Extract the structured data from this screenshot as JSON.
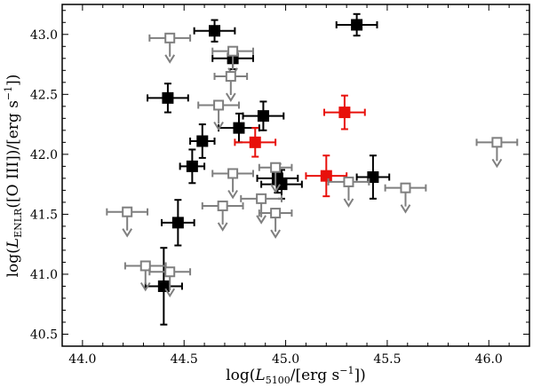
{
  "chart_data": {
    "type": "scatter",
    "xlabel": "log(L5100/[erg s−1])",
    "ylabel": "log(LENLR([O III])/[erg s−1])",
    "xlim": [
      43.9,
      46.2
    ],
    "ylim": [
      40.4,
      43.25
    ],
    "x_ticks": [
      44.0,
      44.5,
      45.0,
      45.5,
      46.0
    ],
    "x_tick_labels": [
      "44.0",
      "44.5",
      "45.0",
      "45.5",
      "46.0"
    ],
    "y_ticks": [
      40.5,
      41.0,
      41.5,
      42.0,
      42.5,
      43.0
    ],
    "y_tick_labels": [
      "40.5",
      "41.0",
      "41.5",
      "42.0",
      "42.5",
      "43.0"
    ],
    "grid": false,
    "legend": "none",
    "colors": {
      "detected": "#000000",
      "upper_limit": "#7f7f7f",
      "highlight": "#e8100b"
    },
    "series": [
      {
        "marker": "filled-square",
        "color": "#000000",
        "points": [
          {
            "x": 44.65,
            "y": 43.03,
            "xerr": 0.1,
            "yerr": 0.09
          },
          {
            "x": 45.35,
            "y": 43.08,
            "xerr": 0.1,
            "yerr": 0.09
          },
          {
            "x": 44.74,
            "y": 42.8,
            "xerr": 0.1,
            "yerr": 0.09
          },
          {
            "x": 44.42,
            "y": 42.47,
            "xerr": 0.1,
            "yerr": 0.12
          },
          {
            "x": 44.89,
            "y": 42.32,
            "xerr": 0.1,
            "yerr": 0.12
          },
          {
            "x": 44.77,
            "y": 42.22,
            "xerr": 0.1,
            "yerr": 0.12
          },
          {
            "x": 44.59,
            "y": 42.11,
            "xerr": 0.06,
            "yerr": 0.14
          },
          {
            "x": 44.54,
            "y": 41.9,
            "xerr": 0.06,
            "yerr": 0.14
          },
          {
            "x": 44.96,
            "y": 41.8,
            "xerr": 0.1,
            "yerr": 0.12
          },
          {
            "x": 44.98,
            "y": 41.75,
            "xerr": 0.1,
            "yerr": 0.12
          },
          {
            "x": 45.43,
            "y": 41.81,
            "xerr": 0.08,
            "yerr": 0.18
          },
          {
            "x": 44.47,
            "y": 41.43,
            "xerr": 0.08,
            "yerr": 0.19
          },
          {
            "x": 44.4,
            "y": 40.9,
            "xerr": 0.09,
            "yerr": 0.32
          }
        ]
      },
      {
        "marker": "filled-square",
        "color": "#e8100b",
        "points": [
          {
            "x": 45.29,
            "y": 42.35,
            "xerr": 0.1,
            "yerr": 0.14
          },
          {
            "x": 44.85,
            "y": 42.1,
            "xerr": 0.1,
            "yerr": 0.12
          },
          {
            "x": 45.2,
            "y": 41.82,
            "xerr": 0.1,
            "yerr": 0.17
          }
        ]
      },
      {
        "marker": "open-square-upper-limit",
        "color": "#7f7f7f",
        "points": [
          {
            "x": 44.43,
            "y": 42.97,
            "xerr": 0.1
          },
          {
            "x": 44.74,
            "y": 42.86,
            "xerr": 0.1
          },
          {
            "x": 44.73,
            "y": 42.65,
            "xerr": 0.08
          },
          {
            "x": 44.67,
            "y": 42.41,
            "xerr": 0.1
          },
          {
            "x": 44.74,
            "y": 41.84,
            "xerr": 0.1
          },
          {
            "x": 44.95,
            "y": 41.89,
            "xerr": 0.08
          },
          {
            "x": 45.31,
            "y": 41.77,
            "xerr": 0.1
          },
          {
            "x": 45.59,
            "y": 41.72,
            "xerr": 0.1
          },
          {
            "x": 46.04,
            "y": 42.1,
            "xerr": 0.1
          },
          {
            "x": 44.69,
            "y": 41.57,
            "xerr": 0.1
          },
          {
            "x": 44.88,
            "y": 41.63,
            "xerr": 0.1
          },
          {
            "x": 44.95,
            "y": 41.51,
            "xerr": 0.08
          },
          {
            "x": 44.22,
            "y": 41.52,
            "xerr": 0.1
          },
          {
            "x": 44.31,
            "y": 41.07,
            "xerr": 0.1
          },
          {
            "x": 44.43,
            "y": 41.02,
            "xerr": 0.1
          }
        ]
      }
    ]
  }
}
